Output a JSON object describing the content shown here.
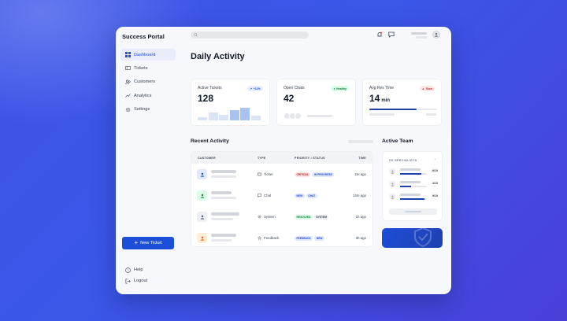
{
  "app": {
    "title": "Success Portal"
  },
  "sidebar": {
    "items": [
      {
        "label": "Dashboard",
        "icon": "grid-icon",
        "active": true
      },
      {
        "label": "Tickets",
        "icon": "ticket-icon"
      },
      {
        "label": "Customers",
        "icon": "users-icon"
      },
      {
        "label": "Analytics",
        "icon": "trend-icon"
      },
      {
        "label": "Settings",
        "icon": "gear-icon"
      }
    ],
    "new_ticket_label": "New Ticket",
    "help_label": "Help",
    "logout_label": "Logout"
  },
  "main": {
    "title": "Daily Activity",
    "stats": {
      "active_tickets": {
        "label": "Active Tickets",
        "value": "128",
        "badge": "+12%",
        "bars": [
          0.22,
          0.5,
          0.36,
          0.64,
          0.78,
          0.29
        ]
      },
      "open_chats": {
        "label": "Open Chats",
        "value": "42",
        "badge": "Healthy"
      },
      "avg_res_time": {
        "label": "Avg Res Time",
        "value": "14",
        "unit": "min",
        "badge": "Slow",
        "progress": 0.7
      }
    },
    "recent_activity": {
      "title": "Recent Activity",
      "columns": {
        "customer": "CUSTOMER",
        "type": "TYPE",
        "priority": "PRIORITY / STATUS",
        "time": "TIME"
      },
      "rows": [
        {
          "type": "Ticket",
          "type_icon": "ticket-icon",
          "pills": [
            "CRITICAL",
            "IN PROGRESS"
          ],
          "time": "2m ago",
          "color": "#1d4ed8"
        },
        {
          "type": "Chat",
          "type_icon": "chat-icon",
          "pills": [
            "NEW",
            "CHAT"
          ],
          "time": "14m ago",
          "color": "#15803d"
        },
        {
          "type": "System",
          "type_icon": "gear-icon",
          "pills": [
            "RESOLVED",
            "SYSTEM"
          ],
          "time": "1h ago",
          "color": "#4b5563"
        },
        {
          "type": "Feedback",
          "type_icon": "star-icon",
          "pills": [
            "FEEDBACK",
            "NEW"
          ],
          "time": "3h ago",
          "color": "#ea580c"
        }
      ]
    },
    "team": {
      "title": "Active Team",
      "header": "CS SPECIALISTS",
      "members": [
        {
          "count": "8/10",
          "load": 0.8
        },
        {
          "count": "4/10",
          "load": 0.4
        },
        {
          "count": "9/10",
          "load": 0.9
        }
      ]
    }
  }
}
